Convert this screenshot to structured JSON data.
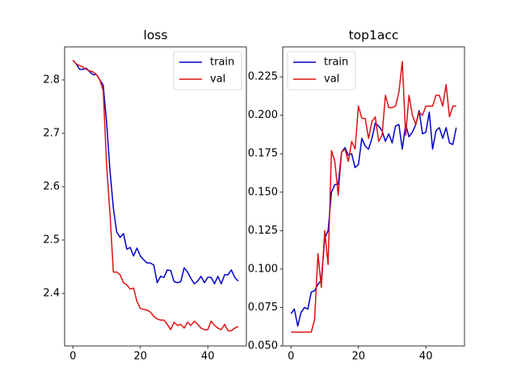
{
  "chart_data": [
    {
      "type": "line",
      "title": "loss",
      "legend": "upper right",
      "x": [
        0,
        1,
        2,
        3,
        4,
        5,
        6,
        7,
        8,
        9,
        10,
        11,
        12,
        13,
        14,
        15,
        16,
        17,
        18,
        19,
        20,
        21,
        22,
        23,
        24,
        25,
        26,
        27,
        28,
        29,
        30,
        31,
        32,
        33,
        34,
        35,
        36,
        37,
        38,
        39,
        40,
        41,
        42,
        43,
        44,
        45,
        46,
        47,
        48,
        49
      ],
      "xlim": [
        -2.45,
        51.45
      ],
      "xticks": [
        0,
        20,
        40
      ],
      "ylim": [
        2.3015,
        2.862
      ],
      "yticks": [
        2.4,
        2.5,
        2.6,
        2.7,
        2.8
      ],
      "series": [
        {
          "name": "train",
          "color": "#0000cc",
          "values": [
            2.837,
            2.83,
            2.82,
            2.82,
            2.822,
            2.815,
            2.81,
            2.81,
            2.8,
            2.79,
            2.72,
            2.63,
            2.56,
            2.515,
            2.505,
            2.512,
            2.483,
            2.486,
            2.47,
            2.485,
            2.47,
            2.463,
            2.457,
            2.457,
            2.453,
            2.42,
            2.432,
            2.43,
            2.444,
            2.443,
            2.422,
            2.42,
            2.422,
            2.448,
            2.44,
            2.428,
            2.418,
            2.423,
            2.432,
            2.42,
            2.43,
            2.43,
            2.418,
            2.432,
            2.418,
            2.435,
            2.435,
            2.444,
            2.43,
            2.423
          ]
        },
        {
          "name": "val",
          "color": "#dd1111",
          "values": [
            2.837,
            2.83,
            2.827,
            2.824,
            2.82,
            2.817,
            2.815,
            2.81,
            2.8,
            2.78,
            2.64,
            2.55,
            2.44,
            2.44,
            2.435,
            2.42,
            2.416,
            2.408,
            2.41,
            2.385,
            2.372,
            2.37,
            2.369,
            2.365,
            2.357,
            2.352,
            2.35,
            2.35,
            2.342,
            2.332,
            2.346,
            2.34,
            2.342,
            2.335,
            2.346,
            2.34,
            2.348,
            2.342,
            2.335,
            2.332,
            2.332,
            2.348,
            2.34,
            2.335,
            2.332,
            2.342,
            2.33,
            2.33,
            2.335,
            2.338
          ]
        }
      ]
    },
    {
      "type": "line",
      "title": "top1acc",
      "legend": "upper left",
      "x": [
        0,
        1,
        2,
        3,
        4,
        5,
        6,
        7,
        8,
        9,
        10,
        11,
        12,
        13,
        14,
        15,
        16,
        17,
        18,
        19,
        20,
        21,
        22,
        23,
        24,
        25,
        26,
        27,
        28,
        29,
        30,
        31,
        32,
        33,
        34,
        35,
        36,
        37,
        38,
        39,
        40,
        41,
        42,
        43,
        44,
        45,
        46,
        47,
        48,
        49
      ],
      "xlim": [
        -2.45,
        51.45
      ],
      "xticks": [
        0,
        20,
        40
      ],
      "ylim": [
        0.05,
        0.2445
      ],
      "yticks": [
        {
          "value": 0.05,
          "label": "0.050"
        },
        0.075,
        {
          "value": 0.1,
          "label": "0.100"
        },
        0.125,
        {
          "value": 0.15,
          "label": "0.150"
        },
        0.175,
        {
          "value": 0.2,
          "label": "0.200"
        },
        0.225
      ],
      "series": [
        {
          "name": "train",
          "color": "#0000cc",
          "values": [
            0.071,
            0.074,
            0.063,
            0.072,
            0.075,
            0.074,
            0.085,
            0.086,
            0.09,
            0.093,
            0.12,
            0.125,
            0.15,
            0.155,
            0.155,
            0.176,
            0.179,
            0.174,
            0.175,
            0.166,
            0.168,
            0.185,
            0.18,
            0.178,
            0.185,
            0.195,
            0.193,
            0.19,
            0.183,
            0.188,
            0.182,
            0.193,
            0.194,
            0.178,
            0.194,
            0.186,
            0.189,
            0.194,
            0.203,
            0.188,
            0.189,
            0.202,
            0.178,
            0.19,
            0.192,
            0.185,
            0.192,
            0.182,
            0.181,
            0.192
          ]
        },
        {
          "name": "val",
          "color": "#dd1111",
          "values": [
            0.059,
            0.059,
            0.059,
            0.059,
            0.059,
            0.059,
            0.059,
            0.067,
            0.11,
            0.088,
            0.125,
            0.103,
            0.177,
            0.17,
            0.148,
            0.176,
            0.178,
            0.17,
            0.183,
            0.178,
            0.206,
            0.198,
            0.198,
            0.185,
            0.196,
            0.199,
            0.183,
            0.187,
            0.213,
            0.205,
            0.205,
            0.206,
            0.215,
            0.235,
            0.187,
            0.213,
            0.2,
            0.194,
            0.202,
            0.2,
            0.206,
            0.206,
            0.206,
            0.213,
            0.213,
            0.206,
            0.22,
            0.199,
            0.206,
            0.206
          ]
        }
      ]
    }
  ]
}
